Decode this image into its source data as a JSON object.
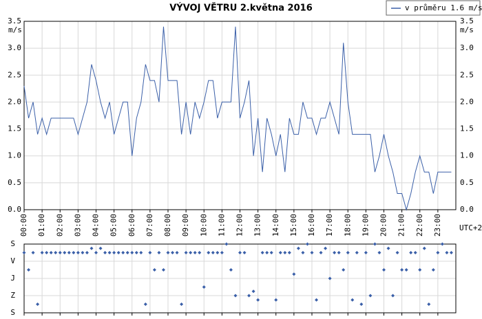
{
  "chart_data": [
    {
      "type": "line",
      "title": "VÝVOJ VĚTRU  2.května 2016",
      "y_label": "m/s",
      "x_label": "UTC+2",
      "grid": true,
      "legend_position": "top-right",
      "xlim": [
        0,
        24
      ],
      "ylim": [
        0,
        3.5
      ],
      "yticks": [
        {
          "value": 0,
          "label": "0.0"
        },
        0.5,
        {
          "value": 1,
          "label": "1.0"
        },
        1.5,
        {
          "value": 2,
          "label": "2.0"
        },
        2.5,
        {
          "value": 3,
          "label": "3.0"
        },
        3.5
      ],
      "xticks": [
        {
          "value": 0,
          "label": "00:00"
        },
        {
          "value": 1,
          "label": "01:00"
        },
        {
          "value": 2,
          "label": "02:00"
        },
        {
          "value": 3,
          "label": "03:00"
        },
        {
          "value": 4,
          "label": "04:00"
        },
        {
          "value": 5,
          "label": "05:00"
        },
        {
          "value": 6,
          "label": "06:00"
        },
        {
          "value": 7,
          "label": "07:00"
        },
        {
          "value": 8,
          "label": "08:00"
        },
        {
          "value": 9,
          "label": "09:00"
        },
        {
          "value": 10,
          "label": "10:00"
        },
        {
          "value": 11,
          "label": "11:00"
        },
        {
          "value": 12,
          "label": "12:00"
        },
        {
          "value": 13,
          "label": "13:00"
        },
        {
          "value": 14,
          "label": "14:00"
        },
        {
          "value": 15,
          "label": "15:00"
        },
        {
          "value": 16,
          "label": "16:00"
        },
        {
          "value": 17,
          "label": "17:00"
        },
        {
          "value": 18,
          "label": "18:00"
        },
        {
          "value": 19,
          "label": "19:00"
        },
        {
          "value": 20,
          "label": "20:00"
        },
        {
          "value": 21,
          "label": "21:00"
        },
        {
          "value": 22,
          "label": "22:00"
        },
        {
          "value": 23,
          "label": "23:00"
        }
      ],
      "x": [
        0,
        0.25,
        0.5,
        0.75,
        1,
        1.25,
        1.5,
        1.75,
        2,
        2.25,
        2.5,
        2.75,
        3,
        3.25,
        3.5,
        3.75,
        4,
        4.25,
        4.5,
        4.75,
        5,
        5.25,
        5.5,
        5.75,
        6,
        6.25,
        6.5,
        6.75,
        7,
        7.25,
        7.5,
        7.75,
        8,
        8.25,
        8.5,
        8.75,
        9,
        9.25,
        9.5,
        9.75,
        10,
        10.25,
        10.5,
        10.75,
        11,
        11.25,
        11.5,
        11.75,
        12,
        12.25,
        12.5,
        12.75,
        13,
        13.25,
        13.5,
        13.75,
        14,
        14.25,
        14.5,
        14.75,
        15,
        15.25,
        15.5,
        15.75,
        16,
        16.25,
        16.5,
        16.75,
        17,
        17.25,
        17.5,
        17.75,
        18,
        18.25,
        18.5,
        18.75,
        19,
        19.25,
        19.5,
        19.75,
        20,
        20.25,
        20.5,
        20.75,
        21,
        21.25,
        21.5,
        21.75,
        22,
        22.25,
        22.5,
        22.75,
        23,
        23.25,
        23.5,
        23.75
      ],
      "series": [
        {
          "name": "v průměru 1.6 m/s",
          "color": "#3a5fa8",
          "values": [
            2.3,
            1.7,
            2.0,
            1.4,
            1.7,
            1.4,
            1.7,
            1.7,
            1.7,
            1.7,
            1.7,
            1.7,
            1.4,
            1.7,
            2.0,
            2.7,
            2.4,
            2.0,
            1.7,
            2.0,
            1.4,
            1.7,
            2.0,
            2.0,
            1.0,
            1.7,
            2.0,
            2.7,
            2.4,
            2.4,
            2.0,
            3.4,
            2.4,
            2.4,
            2.4,
            1.4,
            2.0,
            1.4,
            2.0,
            1.7,
            2.0,
            2.4,
            2.4,
            1.7,
            2.0,
            2.0,
            2.0,
            3.4,
            1.7,
            2.0,
            2.4,
            1.0,
            1.7,
            0.7,
            1.7,
            1.4,
            1.0,
            1.4,
            0.7,
            1.7,
            1.4,
            1.4,
            2.0,
            1.7,
            1.7,
            1.4,
            1.7,
            1.7,
            2.0,
            1.7,
            1.4,
            3.1,
            2.0,
            1.4,
            1.4,
            1.4,
            1.4,
            1.4,
            0.7,
            1.0,
            1.4,
            1.0,
            0.7,
            0.3,
            0.3,
            0.0,
            0.3,
            0.7,
            1.0,
            0.7,
            0.7,
            0.3,
            0.7,
            0.7,
            0.7,
            0.7
          ]
        }
      ]
    },
    {
      "type": "scatter",
      "color": "#3a5fa8",
      "grid": true,
      "xlim": [
        0,
        24
      ],
      "ylim": [
        360,
        0
      ],
      "yticks": [
        {
          "value": 0,
          "label": "S"
        },
        {
          "value": 90,
          "label": "V"
        },
        {
          "value": 180,
          "label": "J"
        },
        {
          "value": 270,
          "label": "Z"
        },
        {
          "value": 360,
          "label": "S"
        }
      ],
      "x": [
        0,
        0.25,
        0.5,
        0.75,
        1,
        1.25,
        1.5,
        1.75,
        2,
        2.25,
        2.5,
        2.75,
        3,
        3.25,
        3.5,
        3.75,
        4,
        4.25,
        4.5,
        4.75,
        5,
        5.25,
        5.5,
        5.75,
        6,
        6.25,
        6.5,
        6.75,
        7,
        7.25,
        7.5,
        7.75,
        8,
        8.25,
        8.5,
        8.75,
        9,
        9.25,
        9.5,
        9.75,
        10,
        10.25,
        10.5,
        10.75,
        11,
        11.25,
        11.5,
        11.75,
        12,
        12.25,
        12.5,
        12.75,
        13,
        13.25,
        13.5,
        13.75,
        14,
        14.25,
        14.5,
        14.75,
        15,
        15.25,
        15.5,
        15.75,
        16,
        16.25,
        16.5,
        16.75,
        17,
        17.25,
        17.5,
        17.75,
        18,
        18.25,
        18.5,
        18.75,
        19,
        19.25,
        19.5,
        19.75,
        20,
        20.25,
        20.5,
        20.75,
        21,
        21.25,
        21.5,
        21.75,
        22,
        22.25,
        22.5,
        22.75,
        23,
        23.25,
        23.5,
        23.75
      ],
      "values": [
        45,
        135,
        45,
        315,
        45,
        45,
        45,
        45,
        45,
        45,
        45,
        45,
        45,
        45,
        45,
        22.5,
        45,
        22.5,
        45,
        45,
        45,
        45,
        45,
        45,
        45,
        45,
        45,
        315,
        45,
        135,
        45,
        135,
        45,
        45,
        45,
        315,
        45,
        45,
        45,
        45,
        225,
        45,
        45,
        45,
        45,
        0,
        135,
        270,
        45,
        45,
        270,
        247.5,
        292.5,
        45,
        45,
        45,
        292.5,
        45,
        45,
        45,
        157.5,
        22.5,
        45,
        0,
        45,
        292.5,
        45,
        22.5,
        180,
        45,
        45,
        135,
        45,
        292.5,
        45,
        315,
        45,
        270,
        0,
        45,
        135,
        22.5,
        270,
        45,
        135,
        135,
        45,
        45,
        135,
        22.5,
        315,
        135,
        45,
        0,
        45,
        45
      ]
    }
  ]
}
